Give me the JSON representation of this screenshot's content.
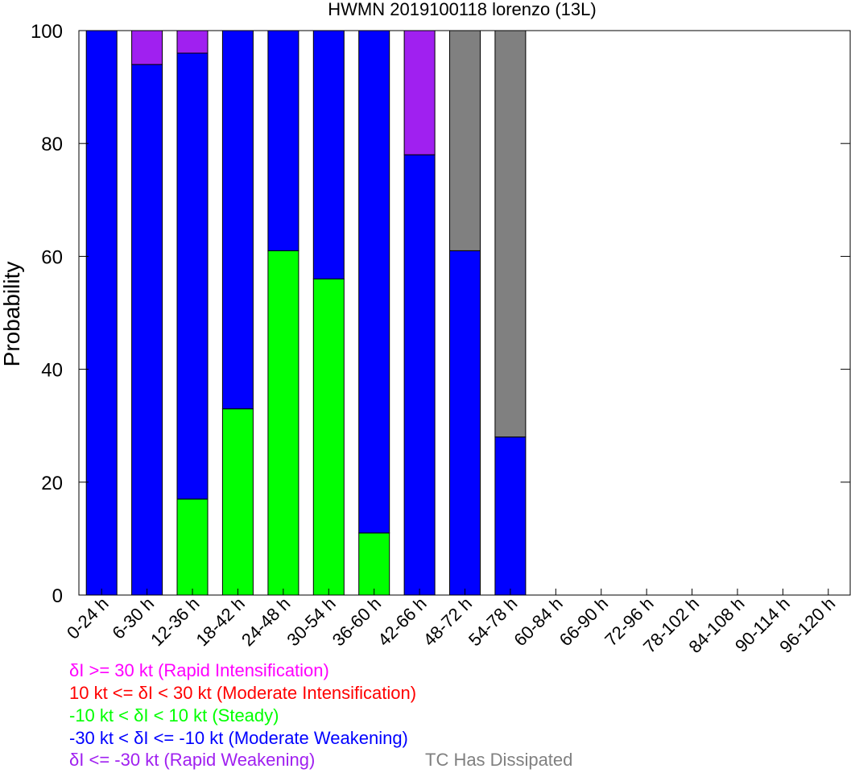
{
  "chart_data": {
    "type": "bar",
    "stacked": true,
    "title": "HWMN 2019100118 lorenzo (13L)",
    "xlabel": "",
    "ylabel": "Probability",
    "ylim": [
      0,
      100
    ],
    "yticks": [
      0,
      20,
      40,
      60,
      80,
      100
    ],
    "grid": false,
    "categories": [
      "0-24 h",
      "6-30 h",
      "12-36 h",
      "18-42 h",
      "24-48 h",
      "30-54 h",
      "36-60 h",
      "42-66 h",
      "48-72 h",
      "54-78 h",
      "60-84 h",
      "66-90 h",
      "72-96 h",
      "78-102 h",
      "84-108 h",
      "90-114 h",
      "96-120 h"
    ],
    "series": [
      {
        "key": "steady",
        "color": "#00ff00",
        "values": [
          0,
          0,
          17,
          33,
          61,
          56,
          11,
          0,
          0,
          0,
          0,
          0,
          0,
          0,
          0,
          0,
          0
        ]
      },
      {
        "key": "moderate_weakening",
        "color": "#0000ff",
        "values": [
          100,
          94,
          79,
          67,
          39,
          44,
          89,
          78,
          61,
          28,
          0,
          0,
          0,
          0,
          0,
          0,
          0
        ]
      },
      {
        "key": "rapid_weakening",
        "color": "#a020f0",
        "values": [
          0,
          6,
          4,
          0,
          0,
          0,
          0,
          22,
          0,
          0,
          0,
          0,
          0,
          0,
          0,
          0,
          0
        ]
      },
      {
        "key": "dissipated",
        "color": "#808080",
        "values": [
          0,
          0,
          0,
          0,
          0,
          0,
          0,
          0,
          39,
          72,
          0,
          0,
          0,
          0,
          0,
          0,
          0
        ]
      }
    ]
  },
  "legend": [
    {
      "text": "δI >= 30 kt (Rapid Intensification)",
      "color": "#ff00ff"
    },
    {
      "text": "10 kt <= δI < 30 kt (Moderate Intensification)",
      "color": "#ff0000"
    },
    {
      "text": "-10 kt < δI < 10 kt (Steady)",
      "color": "#00ff00"
    },
    {
      "text": "-30 kt < δI <= -10 kt (Moderate Weakening)",
      "color": "#0000ff"
    },
    {
      "text": "δI <= -30 kt (Rapid Weakening)",
      "color": "#a020f0"
    }
  ],
  "dissipated_label": {
    "text": "TC Has Dissipated",
    "color": "#808080"
  }
}
